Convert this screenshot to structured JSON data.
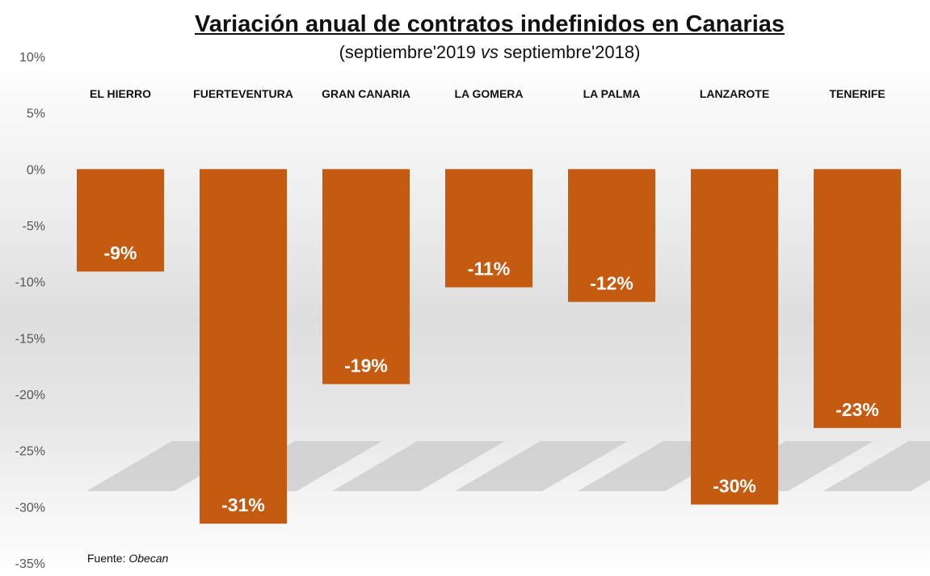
{
  "chart_data": {
    "type": "bar",
    "title": "Variación anual de contratos indefinidos en Canarias",
    "subtitle_pre": "(septiembre'2019 ",
    "subtitle_vs": "vs",
    "subtitle_post": " septiembre'2018)",
    "categories": [
      "EL HIERRO",
      "FUERTEVENTURA",
      "GRAN CANARIA",
      "LA GOMERA",
      "LA PALMA",
      "LANZAROTE",
      "TENERIFE"
    ],
    "values": [
      -9.1,
      -31.5,
      -19.1,
      -10.5,
      -11.8,
      -29.8,
      -23.0
    ],
    "data_labels": [
      "-9%",
      "-31%",
      "-19%",
      "-11%",
      "-12%",
      "-30%",
      "-23%"
    ],
    "yticks": [
      10,
      5,
      0,
      -5,
      -10,
      -15,
      -20,
      -25,
      -30,
      -35
    ],
    "ytick_labels": [
      "10%",
      "5%",
      "0%",
      "-5%",
      "-10%",
      "-15%",
      "-20%",
      "-25%",
      "-30%",
      "-35%"
    ],
    "ylim": [
      -35,
      10
    ],
    "xlabel": "",
    "ylabel": "",
    "legend": "none",
    "grid": false,
    "bar_color": "#c55a11"
  },
  "source": {
    "label": "Fuente: ",
    "name": "Obecan"
  }
}
